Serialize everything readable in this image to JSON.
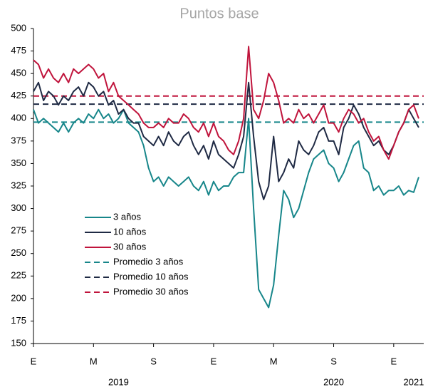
{
  "chart_data": {
    "type": "line",
    "title": "Puntos base",
    "categories": [
      "E",
      null,
      null,
      null,
      null,
      null,
      null,
      null,
      null,
      null,
      null,
      null,
      "M",
      null,
      null,
      null,
      null,
      null,
      null,
      null,
      null,
      null,
      null,
      null,
      "S",
      null,
      null,
      null,
      null,
      null,
      null,
      null,
      null,
      null,
      null,
      null,
      "E",
      null,
      null,
      null,
      null,
      null,
      null,
      null,
      null,
      null,
      null,
      null,
      "M",
      null,
      null,
      null,
      null,
      null,
      null,
      null,
      null,
      null,
      null,
      null,
      "S",
      null,
      null,
      null,
      null,
      null,
      null,
      null,
      null,
      null,
      null,
      null,
      "E",
      null,
      null,
      null,
      null,
      null
    ],
    "year_categories": [
      null,
      null,
      null,
      null,
      null,
      null,
      null,
      null,
      null,
      null,
      null,
      null,
      null,
      null,
      null,
      null,
      null,
      "2019",
      null,
      null,
      null,
      null,
      null,
      null,
      null,
      null,
      null,
      null,
      null,
      null,
      null,
      null,
      null,
      null,
      null,
      null,
      null,
      null,
      null,
      null,
      null,
      null,
      null,
      null,
      null,
      null,
      null,
      null,
      null,
      null,
      null,
      null,
      null,
      null,
      null,
      null,
      null,
      null,
      null,
      null,
      "2020",
      null,
      null,
      null,
      null,
      null,
      null,
      null,
      null,
      null,
      null,
      null,
      null,
      null,
      null,
      null,
      "2021",
      null
    ],
    "series": [
      {
        "name": "3 años",
        "color": "#17868a",
        "values": [
          410,
          395,
          400,
          395,
          390,
          385,
          395,
          385,
          395,
          400,
          395,
          405,
          400,
          410,
          400,
          405,
          395,
          400,
          410,
          395,
          390,
          385,
          370,
          345,
          330,
          335,
          325,
          335,
          330,
          325,
          330,
          335,
          325,
          320,
          330,
          315,
          330,
          320,
          325,
          325,
          335,
          340,
          340,
          400,
          300,
          210,
          200,
          190,
          215,
          270,
          320,
          310,
          290,
          300,
          320,
          340,
          355,
          360,
          365,
          350,
          345,
          330,
          340,
          355,
          370,
          375,
          345,
          340,
          320,
          325,
          315,
          320,
          320,
          325,
          315,
          320,
          318,
          335
        ]
      },
      {
        "name": "10 años",
        "color": "#1f2a44",
        "values": [
          430,
          440,
          420,
          430,
          425,
          415,
          425,
          420,
          430,
          435,
          425,
          440,
          435,
          425,
          430,
          415,
          420,
          405,
          410,
          400,
          395,
          395,
          380,
          375,
          370,
          380,
          370,
          385,
          375,
          370,
          380,
          385,
          370,
          360,
          370,
          355,
          375,
          360,
          355,
          350,
          345,
          360,
          380,
          440,
          380,
          330,
          310,
          325,
          380,
          330,
          340,
          355,
          345,
          375,
          365,
          360,
          370,
          385,
          390,
          375,
          375,
          360,
          390,
          400,
          415,
          405,
          390,
          380,
          370,
          375,
          365,
          360,
          370,
          385,
          395,
          410,
          400,
          390
        ]
      },
      {
        "name": "30 años",
        "color": "#c0143c",
        "values": [
          465,
          460,
          445,
          455,
          445,
          440,
          450,
          440,
          455,
          450,
          455,
          460,
          455,
          445,
          450,
          430,
          440,
          425,
          420,
          415,
          410,
          405,
          395,
          390,
          390,
          395,
          390,
          400,
          395,
          395,
          405,
          400,
          390,
          385,
          395,
          380,
          395,
          380,
          375,
          365,
          360,
          375,
          400,
          480,
          410,
          400,
          420,
          450,
          440,
          420,
          395,
          400,
          395,
          410,
          400,
          405,
          395,
          405,
          415,
          395,
          395,
          385,
          400,
          410,
          405,
          395,
          400,
          385,
          375,
          380,
          365,
          355,
          370,
          385,
          395,
          410,
          415,
          400
        ]
      }
    ],
    "reference_lines": [
      {
        "name": "Promedio 3 años",
        "color": "#17868a",
        "value": 396
      },
      {
        "name": "Promedio 10 años",
        "color": "#1f2a44",
        "value": 416
      },
      {
        "name": "Promedio 30 años",
        "color": "#c0143c",
        "value": 425
      }
    ],
    "ylim": [
      150,
      500
    ],
    "yticks": [
      150,
      175,
      200,
      225,
      250,
      275,
      300,
      325,
      350,
      375,
      400,
      425,
      450,
      475,
      500
    ],
    "grid": false,
    "legend": "left"
  }
}
